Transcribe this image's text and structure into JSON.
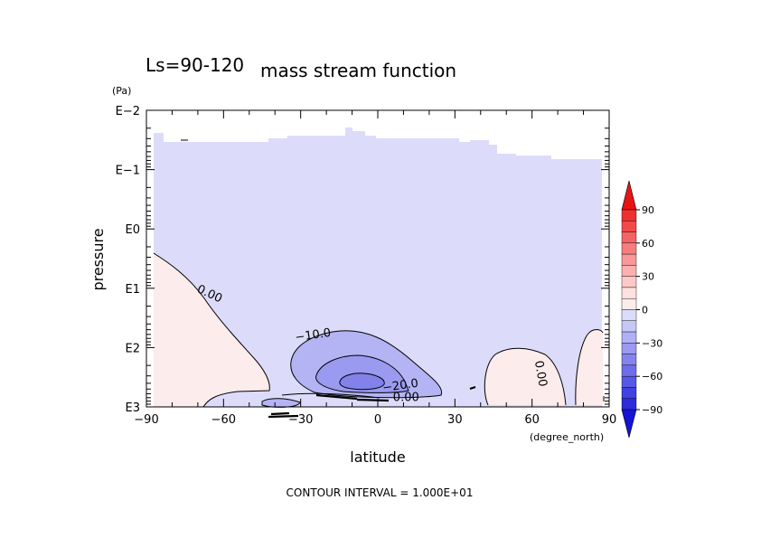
{
  "chart_data": {
    "type": "contour",
    "top_left_label": "Ls=90-120",
    "title": "mass stream function",
    "xlabel": "latitude",
    "xunit": "(degree_north)",
    "ylabel": "pressure",
    "yunit": "(Pa)",
    "footer": "CONTOUR INTERVAL = 1.000E+01",
    "x_ticks": [
      "−90",
      "−60",
      "−30",
      "0",
      "30",
      "60",
      "90"
    ],
    "x_tick_values": [
      -90,
      -60,
      -30,
      0,
      30,
      60,
      90
    ],
    "xlim": [
      -90,
      90
    ],
    "y_ticks": [
      "E−2",
      "E−1",
      "E0",
      "E1",
      "E2",
      "E3"
    ],
    "y_tick_values": [
      -2,
      -1,
      0,
      1,
      2,
      3
    ],
    "ylim_log10": [
      -2,
      3
    ],
    "y_scale": "log, increasing downward",
    "contour_labels": [
      {
        "text": "0.00",
        "lat": -66,
        "logp": 1.15
      },
      {
        "text": "−10.0",
        "lat": -25,
        "logp": 1.85
      },
      {
        "text": "−20.0",
        "lat": 9,
        "logp": 2.7
      },
      {
        "text": "0.00",
        "lat": 11,
        "logp": 2.9
      },
      {
        "text": "0.00",
        "lat": 62,
        "logp": 2.45
      }
    ],
    "colorbar": {
      "tick_labels": [
        "90",
        "60",
        "30",
        "0",
        "−30",
        "−60",
        "−90"
      ],
      "tick_values": [
        90,
        60,
        30,
        0,
        -30,
        -60,
        -90
      ],
      "levels": [
        100,
        90,
        80,
        70,
        60,
        50,
        40,
        30,
        20,
        10,
        0,
        -10,
        -20,
        -30,
        -40,
        -50,
        -60,
        -70,
        -80,
        -90,
        -100
      ],
      "colors": [
        "#e81414",
        "#ee3030",
        "#f24a4a",
        "#f56464",
        "#f77d7d",
        "#f99898",
        "#fbb0b0",
        "#fcc8c8",
        "#fde0e0",
        "#fdecec",
        "#dcdcfa",
        "#c6c6f7",
        "#b0b0f4",
        "#9a9af1",
        "#8484ee",
        "#6e6eea",
        "#5858e6",
        "#4242e2",
        "#2c2cdc",
        "#1414d6"
      ]
    },
    "colors": {
      "neg_0_10": "#dcdcfa",
      "neg_10_20": "#b4b4f4",
      "neg_20_30": "#9a9af0",
      "neg_30_40": "#8282ea",
      "pos_0_10": "#fdecec"
    }
  }
}
